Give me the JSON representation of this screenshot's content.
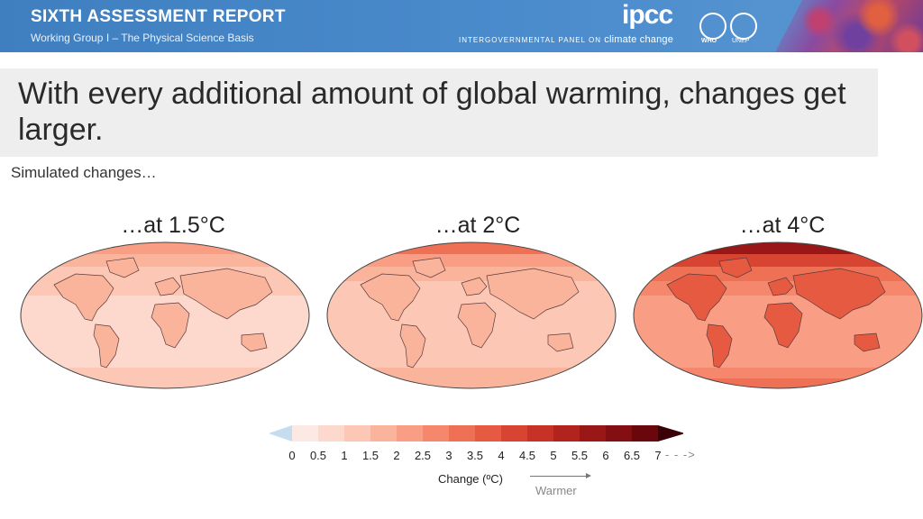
{
  "header": {
    "title": "SIXTH ASSESSMENT REPORT",
    "subtitle": "Working Group I – The Physical Science Basis",
    "logo_text": "ipcc",
    "tagline_prefix": "Intergovernmental panel on",
    "tagline_emph": "climate change",
    "who_label": "WHO",
    "unep_label": "UNEP",
    "brand_color": "#4a8bcc"
  },
  "headline": "With every additional amount of global warming, changes get larger.",
  "subtitle": "Simulated changes…",
  "maps": [
    {
      "label": "…at 1.5°C",
      "warming": 1.5
    },
    {
      "label": "…at 2°C",
      "warming": 2
    },
    {
      "label": "…at 4°C",
      "warming": 4
    }
  ],
  "colorbar": {
    "ticks": [
      "0",
      "0.5",
      "1",
      "1.5",
      "2",
      "2.5",
      "3",
      "3.5",
      "4",
      "4.5",
      "5",
      "5.5",
      "6",
      "6.5",
      "7"
    ],
    "colors": [
      "#fde9e3",
      "#fcd9cc",
      "#fcc8b5",
      "#fbb49c",
      "#f99e84",
      "#f5886c",
      "#ef7155",
      "#e65a42",
      "#d84432",
      "#c63226",
      "#b1231d",
      "#9a1717",
      "#830f12",
      "#6a070d"
    ],
    "negative_color": "#c6dcef",
    "more_arrow": "- - ->",
    "label": "Change (ºC)",
    "direction_label": "Warmer"
  }
}
